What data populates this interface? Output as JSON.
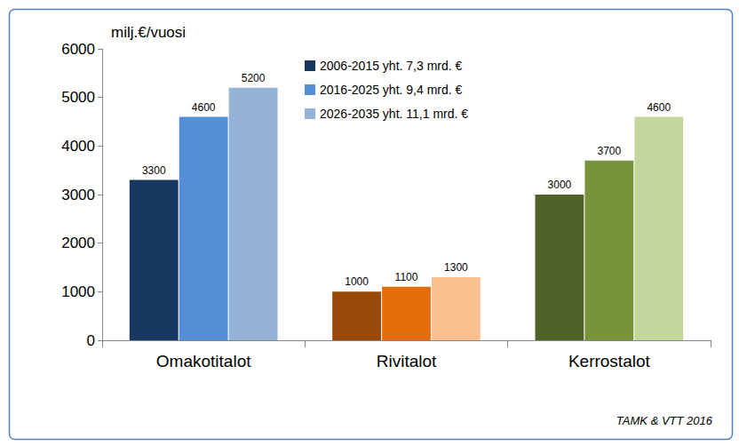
{
  "chart_data": {
    "type": "bar",
    "ylabel": "milj.€/vuosi",
    "categories": [
      "Omakotitalot",
      "Rivitalot",
      "Kerrostalot"
    ],
    "series": [
      {
        "name": "2006-2015 yht. 7,3 mrd. €",
        "color": "#17375e",
        "colors": [
          "#17375e",
          "#984807",
          "#4f6228"
        ],
        "values": [
          3300,
          1000,
          3000
        ]
      },
      {
        "name": "2016-2025 yht. 9,4 mrd. €",
        "color": "#558ed5",
        "colors": [
          "#558ed5",
          "#e46c0a",
          "#77933c"
        ],
        "values": [
          4600,
          1100,
          3700
        ]
      },
      {
        "name": "2026-2035 yht. 11,1 mrd. €",
        "color": "#95b3d7",
        "colors": [
          "#95b3d7",
          "#fac090",
          "#c3d69b"
        ],
        "values": [
          5200,
          1300,
          4600
        ]
      }
    ],
    "ylim": [
      0,
      6000
    ],
    "yticks": [
      0,
      1000,
      2000,
      3000,
      4000,
      5000,
      6000
    ],
    "grid": false,
    "legend": "top",
    "data_labels": true,
    "source": "TAMK & VTT 2016"
  }
}
